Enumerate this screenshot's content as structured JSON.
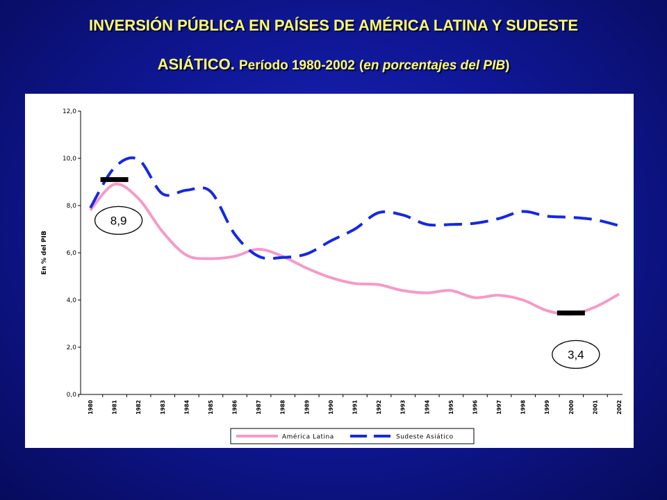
{
  "slide": {
    "title_line1": "INVERSIÓN PÚBLICA EN PAÍSES DE AMÉRICA LATINA Y SUDESTE",
    "title_line2_main": "ASIÁTICO.",
    "title_line2_period": "Período 1980-2002",
    "title_line2_paren_open": "(",
    "title_line2_italic": "en porcentajes del PIB",
    "title_line2_paren_close": ")"
  },
  "chart_data": {
    "type": "line",
    "ylabel": "En % del PIB",
    "ylim": [
      0,
      12
    ],
    "yticks": [
      0,
      2,
      4,
      6,
      8,
      10,
      12
    ],
    "ytick_labels": [
      "0,0",
      "2,0",
      "4,0",
      "6,0",
      "8,0",
      "10,0",
      "12,0"
    ],
    "x": [
      "1980",
      "1981",
      "1982",
      "1983",
      "1984",
      "1985",
      "1986",
      "1987",
      "1988",
      "1989",
      "1990",
      "1991",
      "1992",
      "1993",
      "1994",
      "1995",
      "1996",
      "1997",
      "1998",
      "1999",
      "2000",
      "2001",
      "2002"
    ],
    "series": [
      {
        "name": "América Latina",
        "color": "#f59ac8",
        "style": "solid",
        "values": [
          7.8,
          8.9,
          8.3,
          6.9,
          5.9,
          5.75,
          5.85,
          6.15,
          5.85,
          5.35,
          4.95,
          4.7,
          4.65,
          4.4,
          4.3,
          4.4,
          4.1,
          4.2,
          4.0,
          3.55,
          3.4,
          3.7,
          4.25
        ]
      },
      {
        "name": "Sudeste Asiático",
        "color": "#1428e6",
        "style": "dashed",
        "values": [
          7.9,
          9.6,
          9.95,
          8.5,
          8.65,
          8.6,
          6.8,
          5.85,
          5.8,
          5.95,
          6.5,
          7.0,
          7.7,
          7.6,
          7.2,
          7.2,
          7.25,
          7.45,
          7.75,
          7.55,
          7.5,
          7.4,
          7.15
        ]
      }
    ],
    "annotations": [
      {
        "text": "8,9",
        "year": "1981",
        "value": 8.9,
        "marker_value": 9.1
      },
      {
        "text": "3,4",
        "year": "2000",
        "value": 3.4,
        "marker_value": 3.45
      }
    ],
    "legend_position": "bottom",
    "grid": false
  }
}
